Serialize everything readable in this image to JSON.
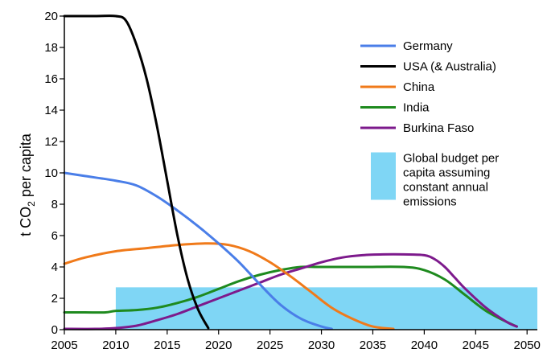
{
  "chart_data": {
    "type": "line",
    "title": "",
    "xlabel": "",
    "ylabel_parts": [
      "t CO",
      "2",
      " per capita"
    ],
    "xlim": [
      2005,
      2051
    ],
    "ylim": [
      0,
      20
    ],
    "xticks": [
      "2005",
      "2010",
      "2015",
      "2020",
      "2025",
      "2030",
      "2035",
      "2040",
      "2045",
      "2050"
    ],
    "xtick_values": [
      2005,
      2010,
      2015,
      2020,
      2025,
      2030,
      2035,
      2040,
      2045,
      2050
    ],
    "yticks": [
      "0",
      "2",
      "4",
      "6",
      "8",
      "10",
      "12",
      "14",
      "16",
      "18",
      "20"
    ],
    "ytick_values": [
      0,
      2,
      4,
      6,
      8,
      10,
      12,
      14,
      16,
      18,
      20
    ],
    "grid": false,
    "legend_position": "top-right",
    "series": [
      {
        "name": "Germany",
        "color": "#4a7ee8",
        "x": [
          2005,
          2007,
          2010,
          2012,
          2014,
          2016,
          2018,
          2020,
          2022,
          2024,
          2026,
          2028,
          2030,
          2031
        ],
        "y": [
          10.0,
          9.8,
          9.5,
          9.2,
          8.5,
          7.6,
          6.6,
          5.5,
          4.3,
          2.9,
          1.6,
          0.7,
          0.2,
          0.05
        ]
      },
      {
        "name": "USA (& Australia)",
        "color": "#000000",
        "x": [
          2005,
          2008,
          2010,
          2011,
          2012,
          2013,
          2014,
          2015,
          2016,
          2017,
          2018,
          2019
        ],
        "y": [
          20.0,
          20.0,
          20.0,
          19.7,
          18.2,
          16.0,
          13.0,
          9.5,
          6.0,
          3.2,
          1.3,
          0.1
        ]
      },
      {
        "name": "China",
        "color": "#f07a1a",
        "x": [
          2005,
          2007,
          2010,
          2013,
          2016,
          2019,
          2021,
          2023,
          2025,
          2027,
          2029,
          2031,
          2033,
          2035,
          2037
        ],
        "y": [
          4.2,
          4.6,
          5.0,
          5.2,
          5.4,
          5.5,
          5.4,
          5.0,
          4.3,
          3.4,
          2.4,
          1.4,
          0.7,
          0.2,
          0.05
        ]
      },
      {
        "name": "India",
        "color": "#1e8a1e",
        "x": [
          2005,
          2007,
          2009,
          2010,
          2012,
          2014,
          2016,
          2018,
          2020,
          2022,
          2024,
          2026,
          2028,
          2030,
          2034,
          2038,
          2040,
          2042,
          2044,
          2046,
          2048,
          2049
        ],
        "y": [
          1.1,
          1.1,
          1.1,
          1.2,
          1.25,
          1.4,
          1.7,
          2.1,
          2.6,
          3.1,
          3.5,
          3.8,
          4.0,
          4.0,
          4.0,
          4.0,
          3.8,
          3.2,
          2.2,
          1.2,
          0.5,
          0.2
        ]
      },
      {
        "name": "Burkina Faso",
        "color": "#7d1a8c",
        "x": [
          2005,
          2008,
          2010,
          2012,
          2014,
          2016,
          2018,
          2020,
          2022,
          2024,
          2026,
          2028,
          2030,
          2032,
          2034,
          2036,
          2038,
          2040,
          2041,
          2042,
          2043,
          2044,
          2046,
          2048,
          2049
        ],
        "y": [
          0.05,
          0.05,
          0.1,
          0.25,
          0.6,
          1.0,
          1.5,
          2.0,
          2.5,
          3.0,
          3.5,
          3.9,
          4.3,
          4.6,
          4.75,
          4.8,
          4.8,
          4.75,
          4.5,
          4.0,
          3.3,
          2.6,
          1.4,
          0.5,
          0.2
        ]
      }
    ],
    "budget_band": {
      "label_lines": [
        "Global budget per",
        "capita assuming",
        "constant annual",
        "emissions"
      ],
      "color": "#7fd6f5",
      "x_start": 2010,
      "x_end": 2051,
      "y_value": 2.7
    }
  }
}
